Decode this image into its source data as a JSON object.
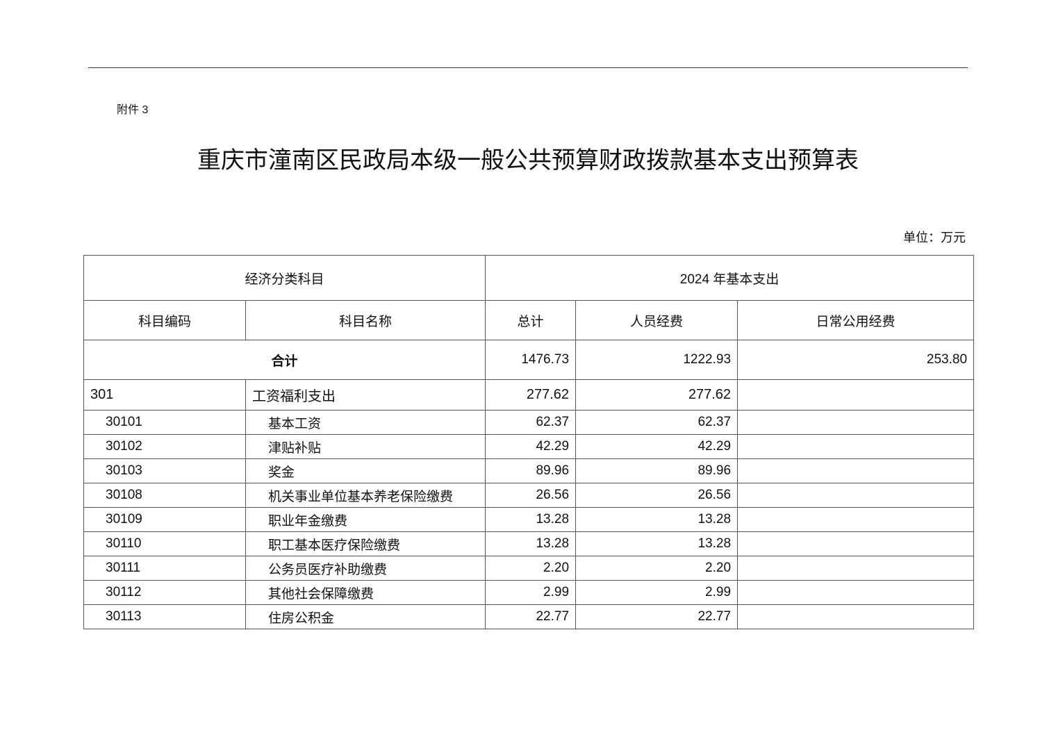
{
  "attachment": "附件 3",
  "title": "重庆市潼南区民政局本级一般公共预算财政拨款基本支出预算表",
  "unit": "单位：万元",
  "header": {
    "group_left": "经济分类科目",
    "group_right": "2024 年基本支出",
    "code": "科目编码",
    "name": "科目名称",
    "total": "总计",
    "personnel": "人员经费",
    "public": "日常公用经费"
  },
  "totals": {
    "label": "合计",
    "total": "1476.73",
    "personnel": "1222.93",
    "public": "253.80"
  },
  "rows": [
    {
      "code": "301",
      "name": "工资福利支出",
      "total": "277.62",
      "personnel": "277.62",
      "public": ""
    },
    {
      "code": "30101",
      "name": "基本工资",
      "total": "62.37",
      "personnel": "62.37",
      "public": ""
    },
    {
      "code": "30102",
      "name": "津贴补贴",
      "total": "42.29",
      "personnel": "42.29",
      "public": ""
    },
    {
      "code": "30103",
      "name": "奖金",
      "total": "89.96",
      "personnel": "89.96",
      "public": ""
    },
    {
      "code": "30108",
      "name": "机关事业单位基本养老保险缴费",
      "total": "26.56",
      "personnel": "26.56",
      "public": ""
    },
    {
      "code": "30109",
      "name": "职业年金缴费",
      "total": "13.28",
      "personnel": "13.28",
      "public": ""
    },
    {
      "code": "30110",
      "name": "职工基本医疗保险缴费",
      "total": "13.28",
      "personnel": "13.28",
      "public": ""
    },
    {
      "code": "30111",
      "name": "公务员医疗补助缴费",
      "total": "2.20",
      "personnel": "2.20",
      "public": ""
    },
    {
      "code": "30112",
      "name": "其他社会保障缴费",
      "total": "2.99",
      "personnel": "2.99",
      "public": ""
    },
    {
      "code": "30113",
      "name": "住房公积金",
      "total": "22.77",
      "personnel": "22.77",
      "public": ""
    }
  ]
}
